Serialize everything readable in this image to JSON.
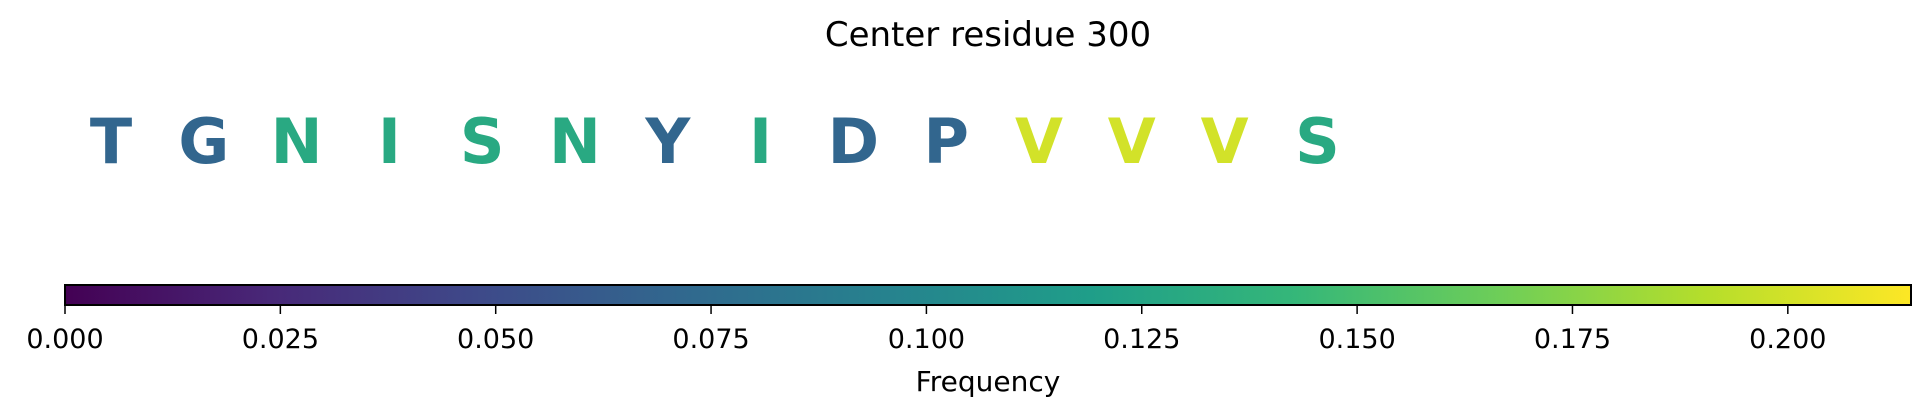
{
  "chart_data": {
    "type": "heatmap",
    "title": "Center residue 300",
    "residues": [
      {
        "letter": "T",
        "frequency": 0.07
      },
      {
        "letter": "G",
        "frequency": 0.07
      },
      {
        "letter": "N",
        "frequency": 0.13
      },
      {
        "letter": "I",
        "frequency": 0.13
      },
      {
        "letter": "S",
        "frequency": 0.13
      },
      {
        "letter": "N",
        "frequency": 0.13
      },
      {
        "letter": "Y",
        "frequency": 0.07
      },
      {
        "letter": "I",
        "frequency": 0.13
      },
      {
        "letter": "D",
        "frequency": 0.07
      },
      {
        "letter": "P",
        "frequency": 0.07
      },
      {
        "letter": "V",
        "frequency": 0.2
      },
      {
        "letter": "V",
        "frequency": 0.2
      },
      {
        "letter": "V",
        "frequency": 0.2
      },
      {
        "letter": "S",
        "frequency": 0.13
      }
    ],
    "colorbar": {
      "label": "Frequency",
      "range": [
        0,
        0.2143
      ],
      "ticks": [
        0.0,
        0.025,
        0.05,
        0.075,
        0.1,
        0.125,
        0.15,
        0.175,
        0.2
      ],
      "tick_labels": [
        "0.000",
        "0.025",
        "0.050",
        "0.075",
        "0.100",
        "0.125",
        "0.150",
        "0.175",
        "0.200"
      ],
      "colormap": "viridis",
      "colormap_stops": [
        "#440154",
        "#482878",
        "#3e4989",
        "#31688e",
        "#26828e",
        "#1f9e89",
        "#35b779",
        "#6ece58",
        "#b5de2b",
        "#fde725"
      ]
    }
  }
}
